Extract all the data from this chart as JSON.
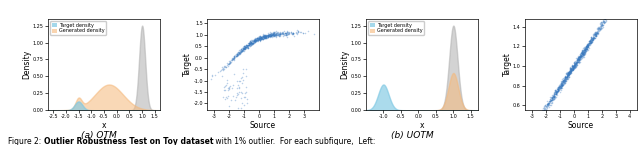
{
  "fig_width": 6.4,
  "fig_height": 1.45,
  "dpi": 100,
  "caption": "(a) OTM",
  "caption2": "(b) UOTM",
  "legend_labels": [
    "Target density",
    "Generated density"
  ],
  "target_color": "#7ec8e3",
  "generated_color": "#f5b87a",
  "scatter_color": "#3a7abf",
  "density_gray": "#b0b0b0",
  "seed": 42
}
